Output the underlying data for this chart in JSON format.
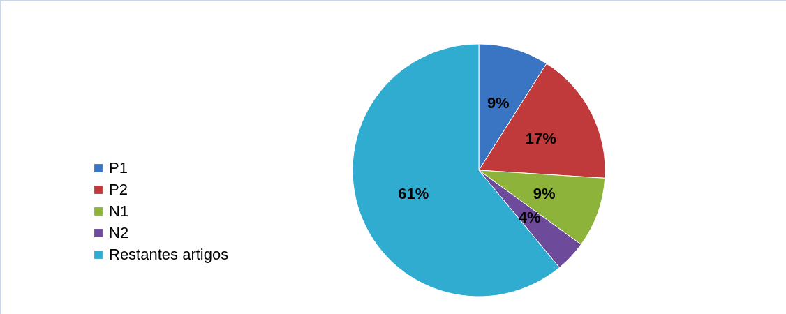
{
  "chart_data": {
    "type": "pie",
    "categories": [
      "P1",
      "P2",
      "N1",
      "N2",
      "Restantes artigos"
    ],
    "values": [
      9,
      17,
      9,
      4,
      61
    ],
    "colors": [
      "#3a75c4",
      "#c0393b",
      "#8db33a",
      "#6e4a9a",
      "#31acd1"
    ],
    "value_labels": [
      "9%",
      "17%",
      "9%",
      "4%",
      "61%"
    ],
    "legend": "left"
  }
}
